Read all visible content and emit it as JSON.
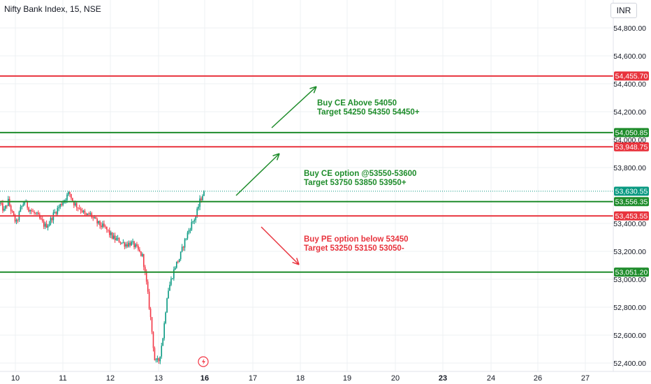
{
  "header": {
    "symbol": "Nifty Bank Index, 15, NSE",
    "currency": "INR"
  },
  "colors": {
    "up": "#089981",
    "down": "#f23645",
    "green_line": "#1e8c2b",
    "red_line": "#e8333d",
    "grid": "#eef0f3",
    "text": "#131722"
  },
  "chart_data": {
    "type": "candlestick",
    "title": "Nifty Bank Index, 15, NSE",
    "x_ticks": [
      {
        "label": "10",
        "bold": false
      },
      {
        "label": "11",
        "bold": false
      },
      {
        "label": "12",
        "bold": false
      },
      {
        "label": "13",
        "bold": false
      },
      {
        "label": "16",
        "bold": true
      },
      {
        "label": "17",
        "bold": false
      },
      {
        "label": "18",
        "bold": false
      },
      {
        "label": "19",
        "bold": false
      },
      {
        "label": "20",
        "bold": false
      },
      {
        "label": "23",
        "bold": true
      },
      {
        "label": "24",
        "bold": false
      },
      {
        "label": "26",
        "bold": false
      },
      {
        "label": "27",
        "bold": false
      }
    ],
    "y_ticks": [
      "54,800.00",
      "54,600.00",
      "54,400.00",
      "54,200.00",
      "54,000.00",
      "53,800.00",
      "53,400.00",
      "53,200.00",
      "53,000.00",
      "52,800.00",
      "52,600.00",
      "52,400.00"
    ],
    "ylim": [
      52400,
      54800
    ],
    "last_price": {
      "value": 53630.55,
      "label": "53,630.55"
    },
    "levels": [
      {
        "value": 54455.7,
        "label": "54,455.70",
        "color": "red"
      },
      {
        "value": 54050.85,
        "label": "54,050.85",
        "color": "green"
      },
      {
        "value": 53948.75,
        "label": "53,948.75",
        "color": "red"
      },
      {
        "value": 53556.35,
        "label": "53,556.35",
        "color": "green"
      },
      {
        "value": 53453.55,
        "label": "53,453.55",
        "color": "red"
      },
      {
        "value": 53051.2,
        "label": "53,051.20",
        "color": "green"
      }
    ],
    "annotations": [
      {
        "line1": "Buy CE Above 54050",
        "line2": "Target 54250 54350 54450+",
        "color": "green"
      },
      {
        "line1": "Buy CE option @53550-53600",
        "line2": "Target 53750 53850 53950+",
        "color": "green"
      },
      {
        "line1": "Buy PE option below 53450",
        "line2": "Target 53250 53150 53050-",
        "color": "red"
      }
    ],
    "price_path": [
      53540,
      53490,
      53560,
      53470,
      53400,
      53500,
      53560,
      53510,
      53480,
      53460,
      53420,
      53380,
      53400,
      53460,
      53500,
      53540,
      53580,
      53620,
      53550,
      53520,
      53500,
      53450,
      53470,
      53430,
      53400,
      53380,
      53360,
      53320,
      53290,
      53280,
      53260,
      53250,
      53260,
      53240,
      53200,
      53160,
      52950,
      52700,
      52400,
      52420,
      52600,
      52900,
      53000,
      53100,
      53150,
      53250,
      53330,
      53400,
      53450,
      53560,
      53630
    ]
  }
}
